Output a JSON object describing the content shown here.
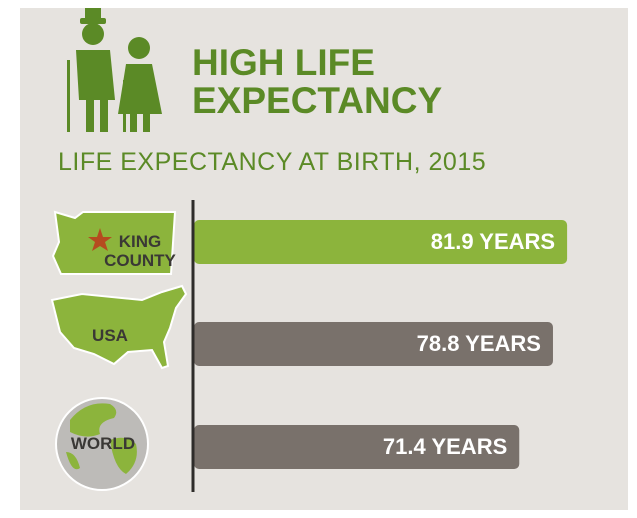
{
  "chart_data": {
    "type": "bar",
    "title": "HIGH LIFE EXPECTANCY",
    "subtitle": "LIFE EXPECTANCY AT BIRTH, 2015",
    "categories": [
      "KING COUNTY",
      "USA",
      "WORLD"
    ],
    "values": [
      81.9,
      78.8,
      71.4
    ],
    "value_labels": [
      "81.9 YEARS",
      "78.8 YEARS",
      "71.4 YEARS"
    ],
    "colors": [
      "#8cb43c",
      "#79716b",
      "#79716b"
    ],
    "xlim": [
      0,
      90
    ]
  }
}
